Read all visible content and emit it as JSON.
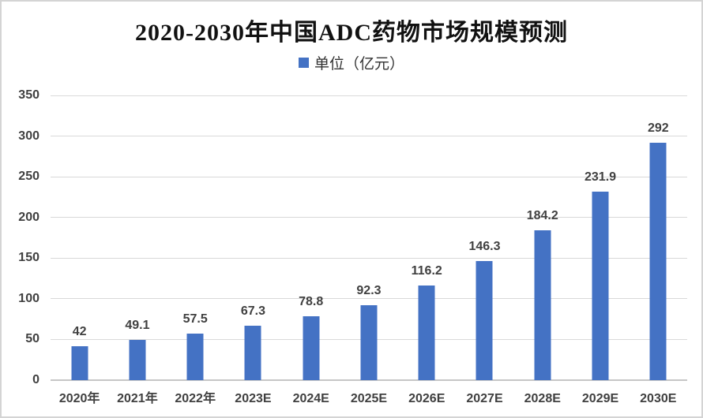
{
  "title": "2020-2030年中国ADC药物市场规模预测",
  "legend": {
    "label": "单位（亿元）",
    "marker_color": "#4472c4"
  },
  "colors": {
    "bar": "#4472c4",
    "gridline": "#d9d9d9",
    "axis_line": "#c6c6c6",
    "label_text": "#404040",
    "title_text": "#111111",
    "frame_border": "#d4d4d4"
  },
  "chart_data": {
    "type": "bar",
    "title": "2020-2030年中国ADC药物市场规模预测",
    "legend_entries": [
      "单位（亿元）"
    ],
    "legend_position": "top",
    "categories": [
      "2020年",
      "2021年",
      "2022年",
      "2023E",
      "2024E",
      "2025E",
      "2026E",
      "2027E",
      "2028E",
      "2029E",
      "2030E"
    ],
    "values": [
      42,
      49.1,
      57.5,
      67.3,
      78.8,
      92.3,
      116.2,
      146.3,
      184.2,
      231.9,
      292
    ],
    "value_labels": [
      "42",
      "49.1",
      "57.5",
      "67.3",
      "78.8",
      "92.3",
      "116.2",
      "146.3",
      "184.2",
      "231.9",
      "292"
    ],
    "xlabel": "",
    "ylabel": "",
    "ylim": [
      0,
      350
    ],
    "yticks": [
      0,
      50,
      100,
      150,
      200,
      250,
      300,
      350
    ],
    "grid": true,
    "bar_color": "#4472c4"
  }
}
